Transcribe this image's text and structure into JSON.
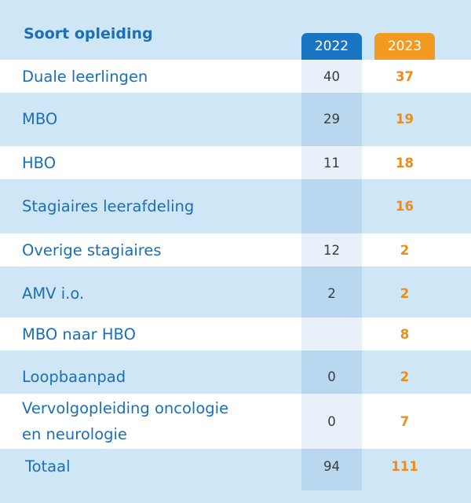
{
  "header": {
    "title": "Soort opleiding",
    "year_2022": "2022",
    "year_2023": "2023"
  },
  "rows": [
    {
      "label": "Duale leerlingen",
      "v2022": "40",
      "v2023": "37"
    },
    {
      "label": "MBO",
      "v2022": "29",
      "v2023": "19"
    },
    {
      "label": "HBO",
      "v2022": "11",
      "v2023": "18"
    },
    {
      "label": "Stagiaires leerafdeling",
      "v2022": "",
      "v2023": "16"
    },
    {
      "label": "Overige stagiaires",
      "v2022": "12",
      "v2023": "2"
    },
    {
      "label": "AMV i.o.",
      "v2022": "2",
      "v2023": "2"
    },
    {
      "label": "MBO naar HBO",
      "v2022": "",
      "v2023": "8"
    },
    {
      "label": "Loopbaanpad",
      "v2022": "0",
      "v2023": "2"
    },
    {
      "label_line1": "Vervolgopleiding oncologie",
      "label_line2": "en neurologie",
      "v2022": "0",
      "v2023": "7"
    }
  ],
  "total": {
    "label": "Totaal",
    "v2022": "94",
    "v2023": "111"
  },
  "colors": {
    "accent_blue": "#1a74c4",
    "accent_orange": "#f39a21",
    "text_blue": "#1a6fb8",
    "background": "#cfe6f7"
  }
}
